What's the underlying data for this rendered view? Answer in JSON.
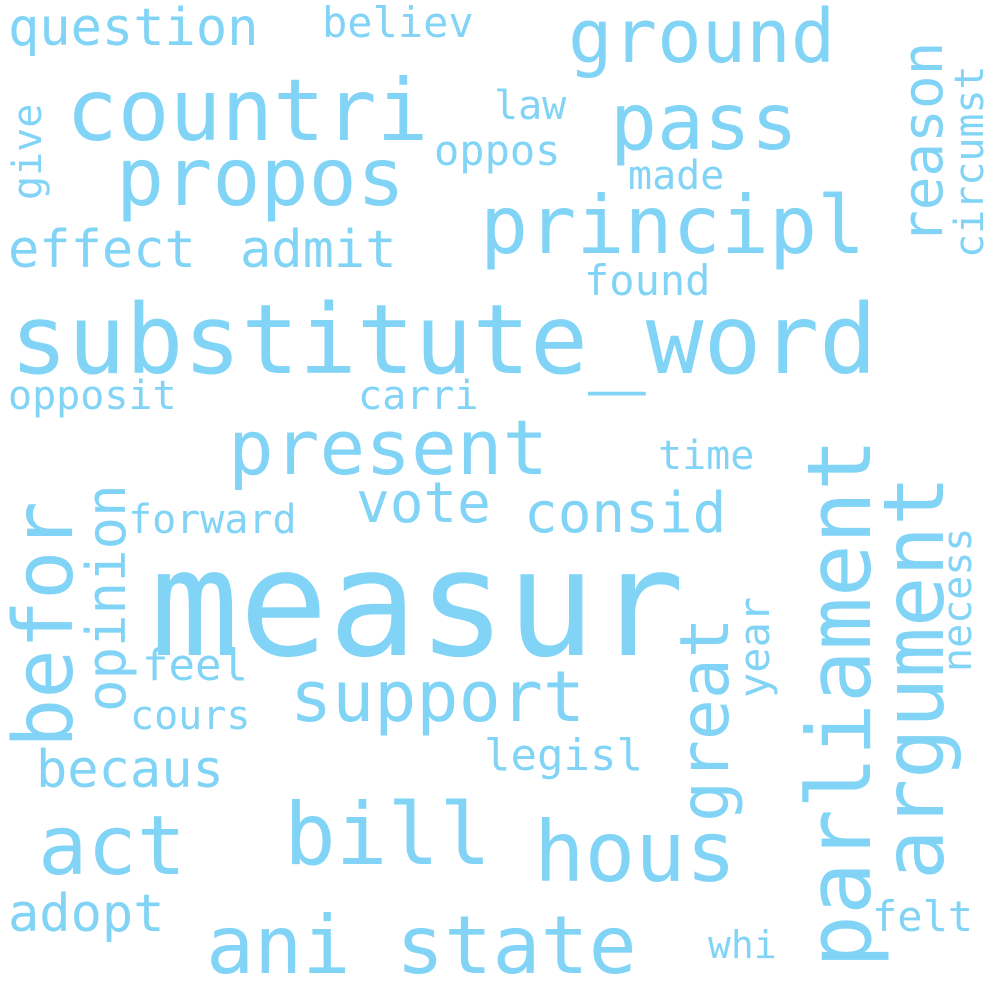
{
  "style": {
    "word_color": "#81d4f5",
    "background": "#ffffff"
  },
  "words": {
    "measur": "measur",
    "substitute_word": "substitute_word",
    "parliament": "parliament",
    "argument": "argument",
    "countri": "countri",
    "propos": "propos",
    "principl": "principl",
    "pass": "pass",
    "ground": "ground",
    "present": "present",
    "support": "support",
    "bill": "bill",
    "hous": "hous",
    "act": "act",
    "state": "state",
    "ani": "ani",
    "befor": "befor",
    "consid": "consid",
    "great": "great",
    "vote": "vote",
    "opinion": "opinion",
    "reason": "reason",
    "effect": "effect",
    "admit": "admit",
    "question": "question",
    "believ": "believ",
    "becaus": "becaus",
    "adopt": "adopt",
    "forward": "forward",
    "cours": "cours",
    "feel": "feel",
    "legisl": "legisl",
    "found": "found",
    "carri": "carri",
    "opposit": "opposit",
    "oppos": "oppos",
    "law": "law",
    "made": "made",
    "time": "time",
    "year": "year",
    "necess": "necess",
    "circumst": "circumst",
    "give": "give",
    "felt": "felt",
    "whi": "whi"
  }
}
